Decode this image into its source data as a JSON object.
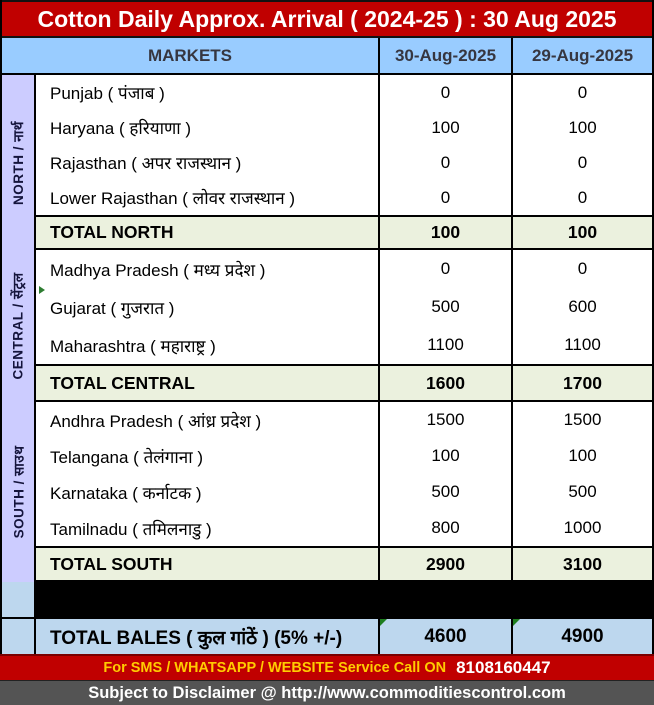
{
  "title": "Cotton Daily Approx. Arrival ( 2024-25 ) : 30 Aug 2025",
  "columns": {
    "markets": "MARKETS",
    "col1": "30-Aug-2025",
    "col2": "29-Aug-2025"
  },
  "sections": [
    {
      "label": "NORTH / नार्थ",
      "rows": [
        {
          "name": "Punjab ( पंजाब )",
          "v1": "0",
          "v2": "0"
        },
        {
          "name": "Haryana ( हरियाणा )",
          "v1": "100",
          "v2": "100"
        },
        {
          "name": "Rajasthan ( अपर राजस्थान )",
          "v1": "0",
          "v2": "0"
        },
        {
          "name": "Lower Rajasthan ( लोवर राजस्थान )",
          "v1": "0",
          "v2": "0"
        }
      ],
      "total": {
        "name": "TOTAL NORTH",
        "v1": "100",
        "v2": "100"
      }
    },
    {
      "label": "CENTRAL / सेंट्रल",
      "rows": [
        {
          "name": "Madhya Pradesh ( मध्य प्रदेश )",
          "v1": "0",
          "v2": "0"
        },
        {
          "name": "Gujarat ( गुजरात )",
          "v1": "500",
          "v2": "600"
        },
        {
          "name": "Maharashtra ( महाराष्ट्र )",
          "v1": "1100",
          "v2": "1100"
        }
      ],
      "total": {
        "name": "TOTAL CENTRAL",
        "v1": "1600",
        "v2": "1700"
      }
    },
    {
      "label": "SOUTH / साउथ",
      "rows": [
        {
          "name": "Andhra Pradesh ( आंध्र प्रदेश )",
          "v1": "1500",
          "v2": "1500"
        },
        {
          "name": "Telangana ( तेलंगाना )",
          "v1": "100",
          "v2": "100"
        },
        {
          "name": "Karnataka ( कर्नाटक )",
          "v1": "500",
          "v2": "500"
        },
        {
          "name": "Tamilnadu ( तमिलनाडु )",
          "v1": "800",
          "v2": "1000"
        }
      ],
      "total": {
        "name": "TOTAL SOUTH",
        "v1": "2900",
        "v2": "3100"
      }
    }
  ],
  "grand_total": {
    "name": "TOTAL BALES ( कुल गांठें ) (5% +/-)",
    "v1": "4600",
    "v2": "4900"
  },
  "footer": {
    "sms_line": "For SMS / WHATSAPP / WEBSITE Service Call  ON",
    "phone": "8108160447",
    "disclaimer": "Subject to Disclaimer @  http://www.commoditiescontrol.com"
  },
  "colors": {
    "title_bg": "#C00000",
    "header_bg": "#99CCFF",
    "sidebar_bg": "#CCCCFF",
    "total_row_bg": "#EBF1DE",
    "bales_row_bg": "#BDD7EE",
    "spacer_bg": "#000000",
    "footer_red": "#C00000",
    "footer_gray": "#545454",
    "footer_yellow_text": "#FFCC00",
    "comment_marker_green": "#1E7D1E"
  }
}
